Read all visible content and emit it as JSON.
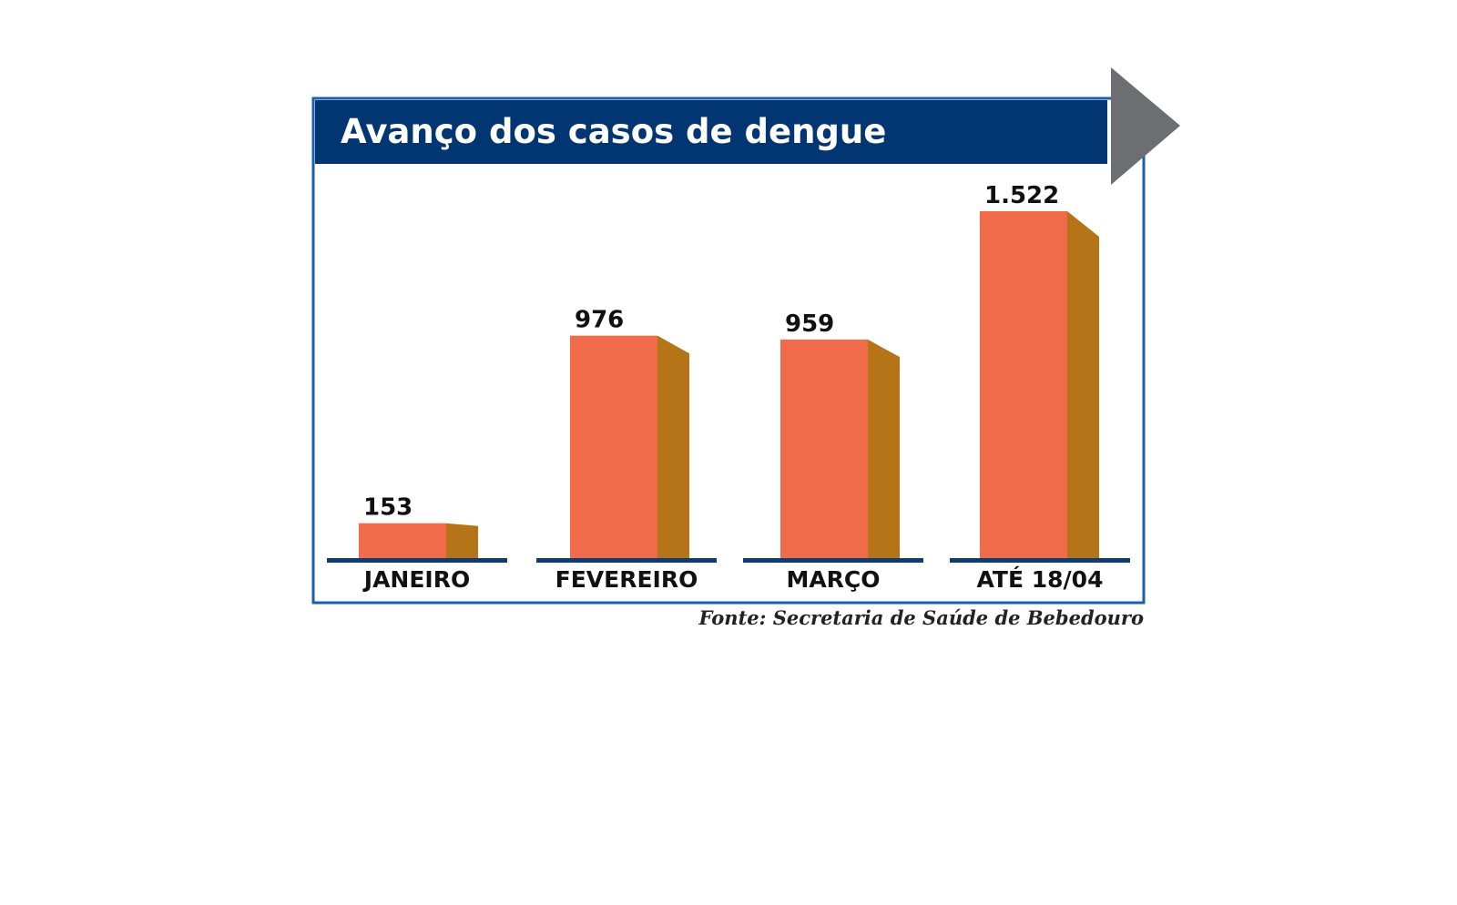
{
  "chart_data": {
    "type": "bar",
    "title": "Avanço dos casos de dengue",
    "categories": [
      "JANEIRO",
      "FEVEREIRO",
      "MARÇO",
      "ATÉ 18/04"
    ],
    "values": [
      153,
      976,
      959,
      1522
    ],
    "value_labels": [
      "153",
      "976",
      "959",
      "1.522"
    ],
    "source": "Fonte: Secretaria de Saúde de Bebedouro",
    "xlabel": "",
    "ylabel": "",
    "grid": false,
    "colors": {
      "bar_front": "#f06b4a",
      "bar_side": "#b57418",
      "header_bg": "#023672",
      "frame": "#1a5fae",
      "arrow": "#6d6e71",
      "baseline": "#0f3d73"
    }
  }
}
